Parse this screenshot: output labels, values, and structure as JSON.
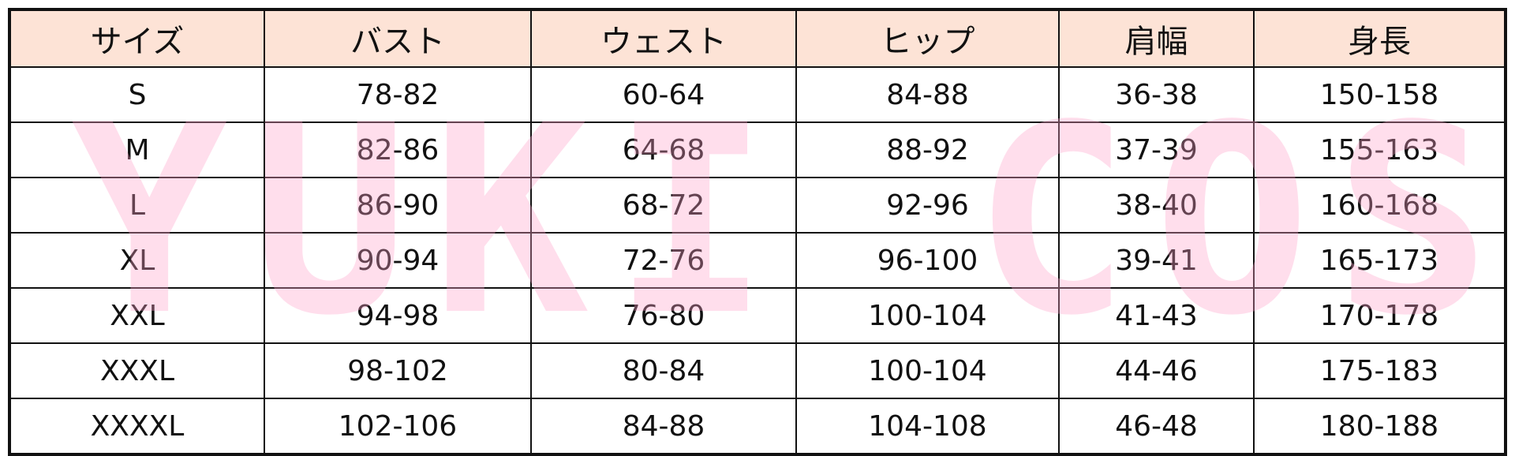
{
  "headers": [
    "サイズ",
    "バスト",
    "ウェスト",
    "ヒップ",
    "肩幅",
    "身長"
  ],
  "rows": [
    [
      "S",
      "78-82",
      "60-64",
      "84-88",
      "36-38",
      "150-158"
    ],
    [
      "M",
      "82-86",
      "64-68",
      "88-92",
      "37-39",
      "155-163"
    ],
    [
      "L",
      "86-90",
      "68-72",
      "92-96",
      "38-40",
      "160-168"
    ],
    [
      "XL",
      "90-94",
      "72-76",
      "96-100",
      "39-41",
      "165-173"
    ],
    [
      "XXL",
      "94-98",
      "76-80",
      "100-104",
      "41-43",
      "170-178"
    ],
    [
      "XXXL",
      "98-102",
      "80-84",
      "100-104",
      "44-46",
      "175-183"
    ],
    [
      "XXXXL",
      "102-106",
      "84-88",
      "104-108",
      "46-48",
      "180-188"
    ]
  ],
  "watermark": "YUKICOS",
  "colors": {
    "header_bg": "#fde3d6",
    "watermark": "#ffa0c8"
  }
}
